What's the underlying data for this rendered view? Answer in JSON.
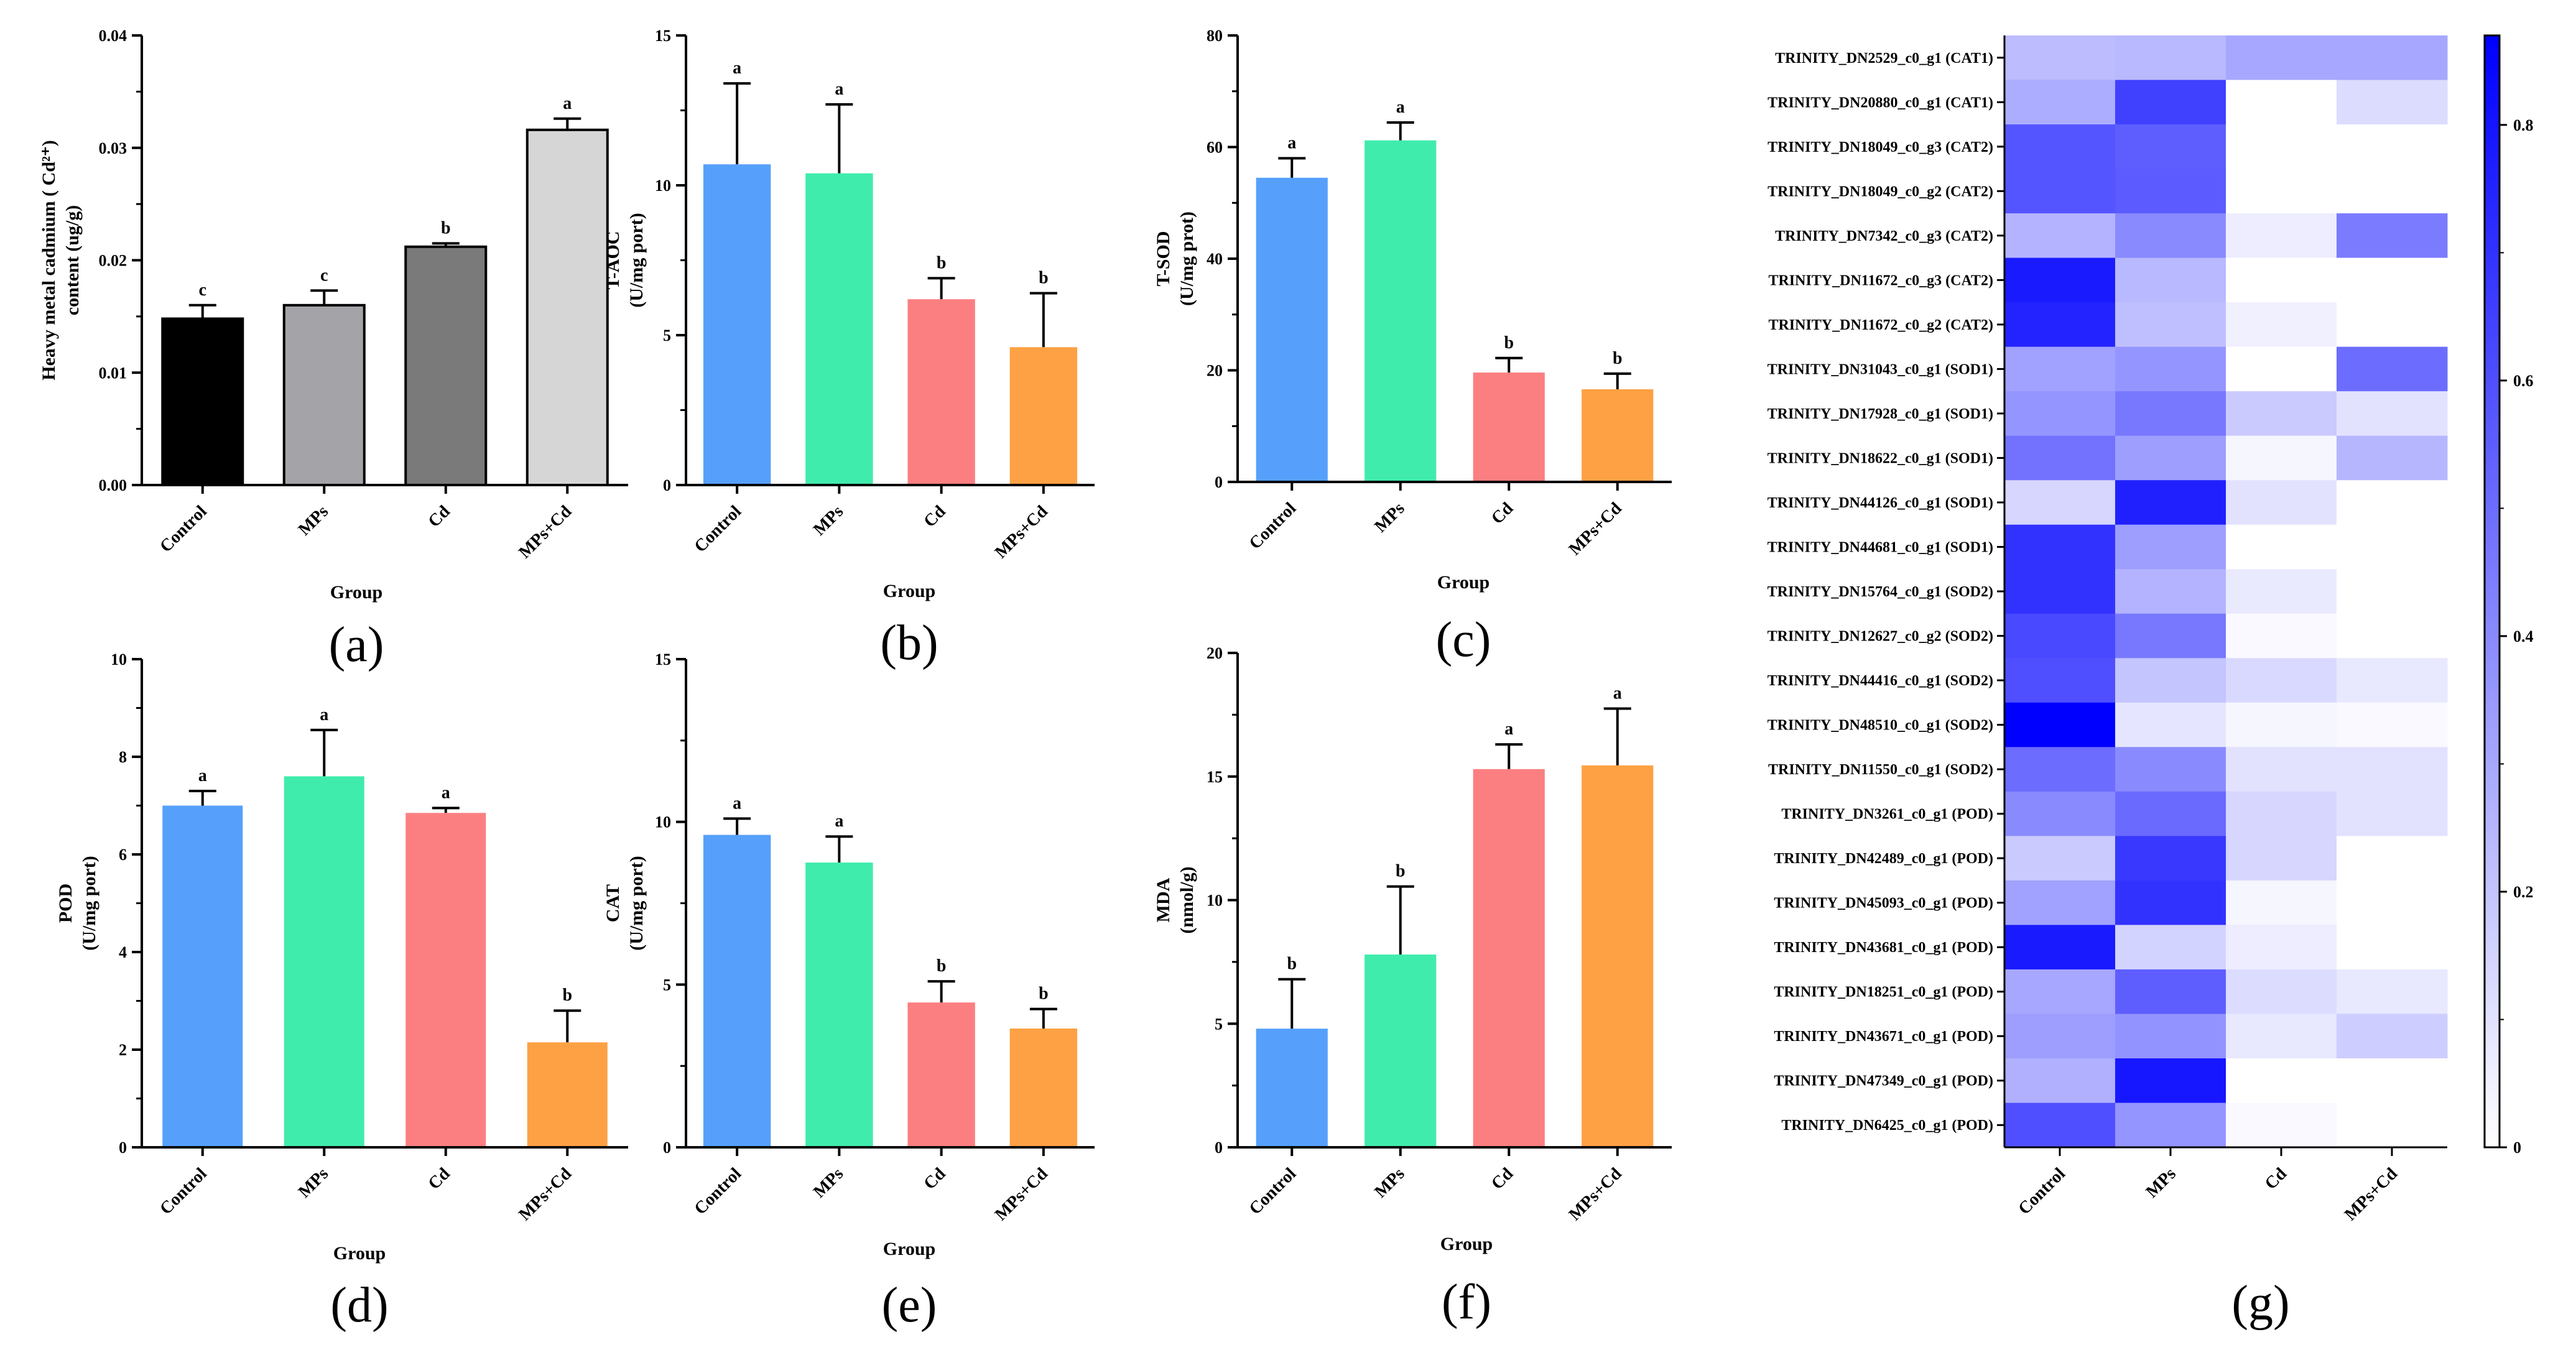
{
  "chart_data": [
    {
      "type": "bar",
      "panel": "(a)",
      "xlabel": "Group",
      "ylabel_lines": [
        "Heavy metal cadmium ( Cd²⁺)",
        "content (ug/g)"
      ],
      "categories": [
        "Control",
        "MPs",
        "Cd",
        "MPs+Cd"
      ],
      "values": [
        0.0148,
        0.016,
        0.0212,
        0.0316
      ],
      "errors": [
        0.0012,
        0.0013,
        0.0003,
        0.001
      ],
      "letters": [
        "c",
        "c",
        "b",
        "a"
      ],
      "colors": [
        "#000000",
        "#a3a3a8",
        "#7a7a7a",
        "#d6d6d6"
      ],
      "outline": true,
      "ylim": [
        0,
        0.04
      ],
      "ticks": [
        0.0,
        0.01,
        0.02,
        0.03,
        0.04
      ],
      "tick_labels": [
        "0.00",
        "0.01",
        "0.02",
        "0.03",
        "0.04"
      ]
    },
    {
      "type": "bar",
      "panel": "(b)",
      "xlabel": "Group",
      "ylabel_lines": [
        "T-AOC",
        "(U/mg port)"
      ],
      "categories": [
        "Control",
        "MPs",
        "Cd",
        "MPs+Cd"
      ],
      "values": [
        10.7,
        10.4,
        6.2,
        4.6
      ],
      "errors": [
        2.7,
        2.3,
        0.7,
        1.8
      ],
      "letters": [
        "a",
        "a",
        "b",
        "b"
      ],
      "colors": [
        "#56a0fb",
        "#40ecac",
        "#fb7f81",
        "#fda144"
      ],
      "ylim": [
        0,
        15
      ],
      "ticks": [
        0,
        5,
        10,
        15
      ],
      "tick_labels": [
        "0",
        "5",
        "10",
        "15"
      ]
    },
    {
      "type": "bar",
      "panel": "(c)",
      "xlabel": "Group",
      "ylabel_lines": [
        "T-SOD",
        "(U/mg prot)"
      ],
      "categories": [
        "Control",
        "MPs",
        "Cd",
        "MPs+Cd"
      ],
      "values": [
        54.5,
        61.2,
        19.6,
        16.6
      ],
      "errors": [
        3.5,
        3.2,
        2.6,
        2.8
      ],
      "letters": [
        "a",
        "a",
        "b",
        "b"
      ],
      "colors": [
        "#56a0fb",
        "#40ecac",
        "#fb7f81",
        "#fda144"
      ],
      "ylim": [
        0,
        80
      ],
      "ticks": [
        0,
        20,
        40,
        60,
        80
      ],
      "tick_labels": [
        "0",
        "20",
        "40",
        "60",
        "80"
      ]
    },
    {
      "type": "bar",
      "panel": "(d)",
      "xlabel": "Group",
      "ylabel_lines": [
        "POD",
        "(U/mg port)"
      ],
      "categories": [
        "Control",
        "MPs",
        "Cd",
        "MPs+Cd"
      ],
      "values": [
        7.0,
        7.6,
        6.85,
        2.15
      ],
      "errors": [
        0.3,
        0.95,
        0.1,
        0.65
      ],
      "letters": [
        "a",
        "a",
        "a",
        "b"
      ],
      "colors": [
        "#56a0fb",
        "#40ecac",
        "#fb7f81",
        "#fda144"
      ],
      "ylim": [
        0,
        10
      ],
      "ticks": [
        0,
        2,
        4,
        6,
        8,
        10
      ],
      "tick_labels": [
        "0",
        "2",
        "4",
        "6",
        "8",
        "10"
      ]
    },
    {
      "type": "bar",
      "panel": "(e)",
      "xlabel": "Group",
      "ylabel_lines": [
        "CAT",
        "(U/mg port)"
      ],
      "categories": [
        "Control",
        "MPs",
        "Cd",
        "MPs+Cd"
      ],
      "values": [
        9.6,
        8.75,
        4.45,
        3.65
      ],
      "errors": [
        0.5,
        0.8,
        0.65,
        0.6
      ],
      "letters": [
        "a",
        "a",
        "b",
        "b"
      ],
      "colors": [
        "#56a0fb",
        "#40ecac",
        "#fb7f81",
        "#fda144"
      ],
      "ylim": [
        0,
        15
      ],
      "ticks": [
        0,
        5,
        10,
        15
      ],
      "tick_labels": [
        "0",
        "5",
        "10",
        "15"
      ]
    },
    {
      "type": "bar",
      "panel": "(f)",
      "xlabel": "Group",
      "ylabel_lines": [
        "MDA",
        "(nmol/g)"
      ],
      "categories": [
        "Control",
        "MPs",
        "Cd",
        "MPs+Cd"
      ],
      "values": [
        4.8,
        7.8,
        15.3,
        15.45
      ],
      "errors": [
        2.0,
        2.75,
        1.0,
        2.3
      ],
      "letters": [
        "b",
        "b",
        "a",
        "a"
      ],
      "colors": [
        "#56a0fb",
        "#40ecac",
        "#fb7f81",
        "#fda144"
      ],
      "ylim": [
        0,
        20
      ],
      "ticks": [
        0,
        5,
        10,
        15,
        20
      ],
      "tick_labels": [
        "0",
        "5",
        "10",
        "15",
        "20"
      ]
    },
    {
      "type": "heatmap",
      "panel": "(g)",
      "columns": [
        "Control",
        "MPs",
        "Cd",
        "MPs+Cd"
      ],
      "rows": [
        "TRINITY_DN2529_c0_g1 (CAT1)",
        "TRINITY_DN20880_c0_g1 (CAT1)",
        "TRINITY_DN18049_c0_g3 (CAT2)",
        "TRINITY_DN18049_c0_g2 (CAT2)",
        "TRINITY_DN7342_c0_g3 (CAT2)",
        "TRINITY_DN11672_c0_g3 (CAT2)",
        "TRINITY_DN11672_c0_g2 (CAT2)",
        "TRINITY_DN31043_c0_g1 (SOD1)",
        "TRINITY_DN17928_c0_g1 (SOD1)",
        "TRINITY_DN18622_c0_g1 (SOD1)",
        "TRINITY_DN44126_c0_g1 (SOD1)",
        "TRINITY_DN44681_c0_g1 (SOD1)",
        "TRINITY_DN15764_c0_g1 (SOD2)",
        "TRINITY_DN12627_c0_g2 (SOD2)",
        "TRINITY_DN44416_c0_g1 (SOD2)",
        "TRINITY_DN48510_c0_g1 (SOD2)",
        "TRINITY_DN11550_c0_g1 (SOD2)",
        "TRINITY_DN3261_c0_g1 (POD)",
        "TRINITY_DN42489_c0_g1 (POD)",
        "TRINITY_DN45093_c0_g1 (POD)",
        "TRINITY_DN43681_c0_g1 (POD)",
        "TRINITY_DN18251_c0_g1 (POD)",
        "TRINITY_DN43671_c0_g1 (POD)",
        "TRINITY_DN47349_c0_g1 (POD)",
        "TRINITY_DN6425_c0_g1 (POD)"
      ],
      "values": [
        [
          0.23,
          0.24,
          0.3,
          0.3
        ],
        [
          0.28,
          0.65,
          0.0,
          0.12
        ],
        [
          0.58,
          0.55,
          0.0,
          0.0
        ],
        [
          0.58,
          0.56,
          0.0,
          0.0
        ],
        [
          0.26,
          0.4,
          0.06,
          0.45
        ],
        [
          0.78,
          0.24,
          0.0,
          0.0
        ],
        [
          0.75,
          0.22,
          0.05,
          0.0
        ],
        [
          0.32,
          0.36,
          0.0,
          0.5
        ],
        [
          0.36,
          0.46,
          0.18,
          0.1
        ],
        [
          0.48,
          0.33,
          0.03,
          0.25
        ],
        [
          0.14,
          0.76,
          0.1,
          0.0
        ],
        [
          0.7,
          0.33,
          0.0,
          0.0
        ],
        [
          0.7,
          0.26,
          0.07,
          0.0
        ],
        [
          0.62,
          0.46,
          0.02,
          0.0
        ],
        [
          0.6,
          0.2,
          0.13,
          0.08
        ],
        [
          0.87,
          0.09,
          0.03,
          0.02
        ],
        [
          0.5,
          0.4,
          0.1,
          0.1
        ],
        [
          0.4,
          0.51,
          0.14,
          0.1
        ],
        [
          0.18,
          0.68,
          0.14,
          0.0
        ],
        [
          0.32,
          0.7,
          0.03,
          0.0
        ],
        [
          0.78,
          0.15,
          0.06,
          0.0
        ],
        [
          0.3,
          0.55,
          0.12,
          0.08
        ],
        [
          0.33,
          0.37,
          0.08,
          0.17
        ],
        [
          0.27,
          0.79,
          0.0,
          0.0
        ],
        [
          0.6,
          0.36,
          0.02,
          0.0
        ]
      ],
      "colorbar": {
        "min": 0,
        "max": 0.87,
        "low_color": "#ffffff",
        "high_color": "#0000ff",
        "ticks": [
          0,
          0.2,
          0.4,
          0.6,
          0.8
        ],
        "tick_labels": [
          "0",
          "0.2",
          "0.4",
          "0.6",
          "0.8"
        ]
      }
    }
  ]
}
